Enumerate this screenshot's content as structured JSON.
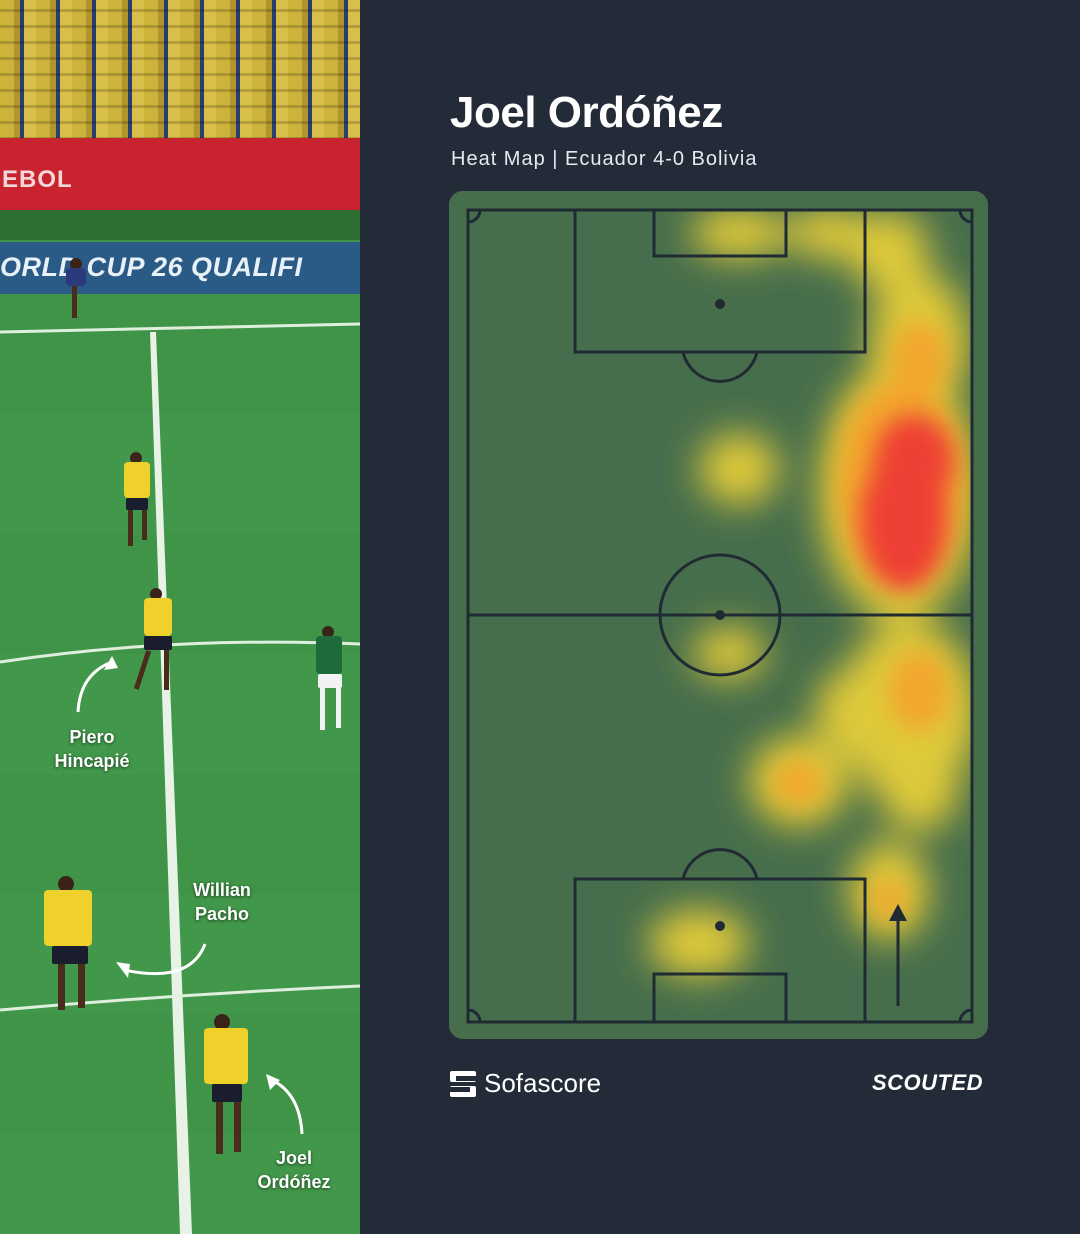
{
  "photo": {
    "hoarding_text": "EBOL",
    "banner_text": "ORLD CUP 26 QUALIFI",
    "labels": {
      "piero": "Piero Hincapié",
      "willian": "Willian Pacho",
      "joel": "Joel Ordóñez"
    }
  },
  "header": {
    "title": "Joel Ordóñez",
    "subtitle": "Heat Map | Ecuador 4-0 Bolivia"
  },
  "heatmap": {
    "attack_direction": "up",
    "colors": {
      "pitch": "#476e4c",
      "lines": "#1f2a33",
      "low": "#f0d437",
      "mid": "#f6a02a",
      "high": "#ee3b36"
    }
  },
  "footer": {
    "source_logo": "Sofascore",
    "brand": "SCOUTED"
  }
}
